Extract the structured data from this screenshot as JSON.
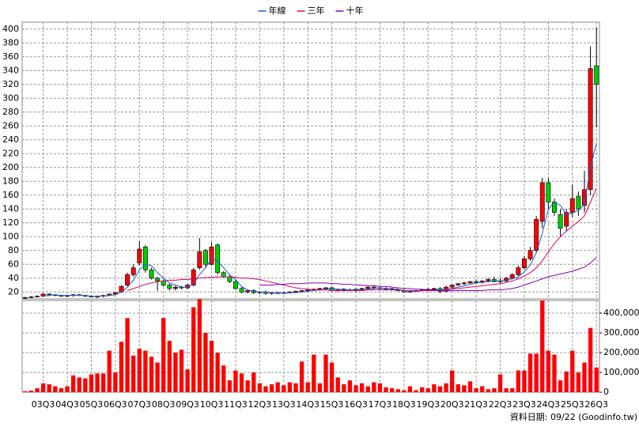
{
  "chart_data": {
    "type": "candlestick",
    "categories": [
      null,
      null,
      null,
      "03Q3",
      null,
      null,
      null,
      "04Q3",
      null,
      null,
      null,
      "05Q3",
      null,
      null,
      null,
      "06Q3",
      null,
      null,
      null,
      "07Q3",
      null,
      null,
      null,
      "08Q3",
      null,
      null,
      null,
      "09Q3",
      null,
      null,
      null,
      "10Q3",
      null,
      null,
      null,
      "11Q3",
      null,
      null,
      null,
      "12Q3",
      null,
      null,
      null,
      "13Q3",
      null,
      null,
      null,
      "14Q3",
      null,
      null,
      null,
      "15Q3",
      null,
      null,
      null,
      "16Q3",
      null,
      null,
      null,
      "17Q3",
      null,
      null,
      null,
      "18Q3",
      null,
      null,
      null,
      "19Q3",
      null,
      null,
      null,
      "20Q3",
      null,
      null,
      null,
      "21Q3",
      null,
      null,
      null,
      "22Q3",
      null,
      null,
      null,
      "23Q3",
      null,
      null,
      null,
      "24Q3",
      null,
      null,
      null,
      "25Q3",
      null,
      null,
      null,
      "26Q3"
    ],
    "ohlc": {
      "open": [
        11,
        12,
        13,
        14,
        17,
        16,
        15,
        14,
        15,
        16,
        15,
        14,
        13,
        14,
        15,
        17,
        20,
        30,
        45,
        62,
        85,
        52,
        40,
        36,
        30,
        25,
        27,
        26,
        30,
        55,
        80,
        60,
        88,
        48,
        42,
        35,
        25,
        20,
        22,
        19,
        20,
        18,
        19,
        18,
        19,
        20,
        21,
        22,
        23,
        24,
        25,
        26,
        22,
        24,
        23,
        22,
        24,
        25,
        27,
        26,
        25,
        24,
        23,
        22,
        20,
        21,
        22,
        23,
        24,
        25,
        21,
        27,
        30,
        32,
        33,
        35,
        34,
        36,
        38,
        35,
        36,
        40,
        45,
        55,
        68,
        80,
        122,
        178,
        150,
        132,
        115,
        135,
        158,
        145,
        168,
        347
      ],
      "high": [
        13,
        14,
        15,
        18,
        18,
        17,
        16,
        16,
        17,
        17,
        16,
        15,
        15,
        16,
        18,
        20,
        30,
        48,
        60,
        93,
        88,
        55,
        42,
        38,
        32,
        29,
        29,
        32,
        55,
        98,
        82,
        92,
        90,
        50,
        45,
        37,
        27,
        24,
        24,
        21,
        22,
        20,
        20,
        20,
        21,
        22,
        23,
        24,
        25,
        26,
        27,
        28,
        25,
        26,
        25,
        25,
        26,
        28,
        30,
        28,
        27,
        26,
        25,
        24,
        23,
        23,
        24,
        25,
        26,
        27,
        29,
        31,
        33,
        35,
        36,
        38,
        37,
        40,
        42,
        40,
        42,
        47,
        58,
        72,
        85,
        130,
        185,
        185,
        155,
        140,
        140,
        175,
        165,
        195,
        375,
        402
      ],
      "low": [
        10,
        11,
        12,
        13,
        14,
        14,
        13,
        12,
        13,
        14,
        13,
        12,
        11,
        12,
        14,
        16,
        19,
        28,
        42,
        58,
        48,
        38,
        22,
        28,
        22,
        22,
        24,
        24,
        28,
        52,
        55,
        58,
        45,
        40,
        33,
        23,
        18,
        18,
        17,
        17,
        16,
        16,
        17,
        17,
        18,
        19,
        20,
        21,
        22,
        22,
        23,
        21,
        20,
        21,
        21,
        20,
        22,
        23,
        24,
        23,
        22,
        22,
        21,
        19,
        19,
        20,
        21,
        22,
        23,
        18,
        20,
        26,
        29,
        30,
        32,
        33,
        32,
        34,
        34,
        33,
        34,
        38,
        43,
        52,
        65,
        76,
        112,
        140,
        130,
        100,
        108,
        128,
        130,
        135,
        160,
        258
      ],
      "close": [
        12,
        13,
        14,
        17,
        16,
        15,
        14,
        15,
        16,
        15,
        14,
        13,
        14,
        15,
        17,
        19,
        28,
        45,
        55,
        82,
        52,
        40,
        36,
        30,
        25,
        27,
        26,
        30,
        52,
        78,
        60,
        85,
        48,
        42,
        35,
        25,
        20,
        22,
        19,
        20,
        18,
        19,
        18,
        19,
        20,
        21,
        22,
        23,
        24,
        25,
        26,
        22,
        24,
        23,
        22,
        24,
        25,
        27,
        26,
        25,
        24,
        23,
        22,
        20,
        21,
        22,
        23,
        24,
        25,
        21,
        27,
        30,
        32,
        33,
        35,
        34,
        36,
        38,
        35,
        36,
        40,
        45,
        55,
        68,
        80,
        125,
        178,
        150,
        135,
        112,
        135,
        155,
        140,
        168,
        343,
        320
      ],
      "up_color": "#ff0000",
      "down_color": "#00cc00"
    },
    "series": [
      {
        "name": "年線",
        "color": "#1f5fd6",
        "values": [
          null,
          null,
          null,
          14,
          15,
          16,
          15,
          15,
          15,
          15,
          15,
          14,
          14,
          14,
          15,
          16,
          20,
          27,
          37,
          52,
          60,
          58,
          48,
          40,
          33,
          30,
          27,
          27,
          32,
          45,
          55,
          68,
          65,
          55,
          45,
          38,
          28,
          23,
          21,
          20,
          20,
          19,
          19,
          18,
          19,
          19,
          20,
          21,
          22,
          23,
          24,
          25,
          24,
          24,
          23,
          23,
          23,
          24,
          25,
          26,
          25,
          25,
          24,
          22,
          21,
          21,
          22,
          23,
          23,
          23,
          24,
          25,
          27,
          29,
          31,
          33,
          34,
          35,
          36,
          36,
          37,
          39,
          42,
          49,
          59,
          77,
          105,
          140,
          150,
          145,
          132,
          134,
          138,
          147,
          200,
          235
        ]
      },
      {
        "name": "三年",
        "color": "#e0006a",
        "values": [
          null,
          null,
          null,
          null,
          null,
          null,
          null,
          null,
          null,
          null,
          null,
          null,
          null,
          null,
          null,
          null,
          null,
          22,
          25,
          28,
          31,
          33,
          35,
          36,
          37,
          37,
          38,
          38,
          39,
          40,
          41,
          41,
          42,
          42,
          42,
          41,
          40,
          40,
          39,
          38,
          36,
          34,
          32,
          30,
          28,
          26,
          25,
          24,
          23,
          23,
          23,
          22,
          22,
          22,
          22,
          22,
          22,
          23,
          23,
          23,
          23,
          23,
          23,
          22,
          22,
          22,
          22,
          22,
          22,
          22,
          23,
          24,
          25,
          26,
          27,
          28,
          29,
          30,
          31,
          32,
          34,
          36,
          39,
          43,
          48,
          55,
          65,
          78,
          90,
          100,
          108,
          115,
          122,
          130,
          150,
          170
        ]
      },
      {
        "name": "十年",
        "color": "#8a00b0",
        "values": [
          null,
          null,
          null,
          null,
          null,
          null,
          null,
          null,
          null,
          null,
          null,
          null,
          null,
          null,
          null,
          null,
          null,
          null,
          null,
          null,
          null,
          null,
          null,
          null,
          null,
          null,
          null,
          null,
          null,
          null,
          null,
          null,
          null,
          null,
          null,
          null,
          null,
          null,
          null,
          30,
          30,
          30,
          31,
          31,
          32,
          32,
          32,
          33,
          33,
          33,
          33,
          32,
          32,
          31,
          31,
          30,
          30,
          29,
          29,
          28,
          28,
          27,
          26,
          25,
          25,
          24,
          24,
          23,
          23,
          22,
          22,
          22,
          22,
          22,
          22,
          22,
          22,
          23,
          23,
          23,
          24,
          25,
          27,
          30,
          33,
          36,
          39,
          42,
          44,
          46,
          48,
          50,
          53,
          56,
          62,
          70
        ]
      }
    ],
    "ylim": [
      10,
      410
    ],
    "yticks": [
      20,
      40,
      60,
      80,
      100,
      120,
      140,
      160,
      180,
      200,
      220,
      240,
      260,
      280,
      300,
      320,
      340,
      360,
      380,
      400
    ],
    "volume": {
      "color": "#ff0000",
      "values": [
        5000,
        8000,
        20000,
        45000,
        40000,
        30000,
        20000,
        30000,
        85000,
        75000,
        70000,
        90000,
        95000,
        95000,
        210000,
        100000,
        255000,
        375000,
        185000,
        220000,
        210000,
        180000,
        150000,
        375000,
        260000,
        200000,
        215000,
        115000,
        430000,
        470000,
        300000,
        260000,
        200000,
        135000,
        60000,
        110000,
        95000,
        60000,
        100000,
        45000,
        30000,
        40000,
        50000,
        35000,
        50000,
        45000,
        155000,
        50000,
        190000,
        45000,
        190000,
        150000,
        75000,
        40000,
        60000,
        35000,
        45000,
        30000,
        50000,
        45000,
        25000,
        20000,
        15000,
        10000,
        30000,
        10000,
        25000,
        20000,
        40000,
        30000,
        45000,
        110000,
        40000,
        35000,
        55000,
        20000,
        30000,
        15000,
        20000,
        90000,
        20000,
        20000,
        110000,
        110000,
        195000,
        195000,
        465000,
        210000,
        190000,
        60000,
        105000,
        210000,
        100000,
        150000,
        325000,
        125000
      ],
      "ylim": [
        0,
        464000
      ],
      "yticks": [
        0,
        {
          "value": 100000,
          "label": "100,000"
        },
        {
          "value": 200000,
          "label": "200,000"
        },
        {
          "value": 300000,
          "label": "300,000"
        },
        {
          "value": 400000,
          "label": "400,000"
        }
      ]
    },
    "grid": true,
    "legend": "top",
    "footnote": "資料日期: 09/22 (Goodinfo.tw)"
  }
}
